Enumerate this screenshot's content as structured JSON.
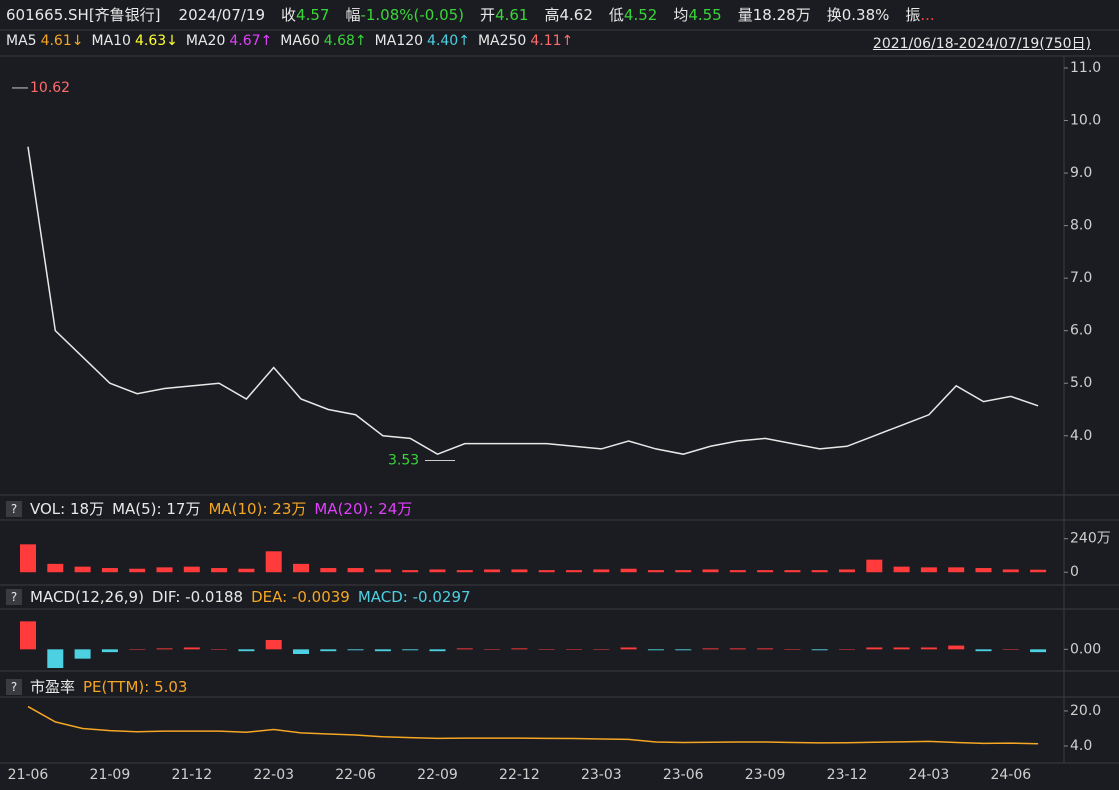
{
  "header": {
    "symbol": "601665.SH[齐鲁银行]",
    "date": "2024/07/19",
    "items": [
      {
        "label": "收",
        "value": "4.57",
        "color": "#3ad53a"
      },
      {
        "label": "幅",
        "value": "-1.08%(-0.05)",
        "color": "#3ad53a"
      },
      {
        "label": "开",
        "value": "4.61",
        "color": "#3ad53a"
      },
      {
        "label": "高",
        "value": "4.62",
        "color": "#e8e8e8"
      },
      {
        "label": "低",
        "value": "4.52",
        "color": "#3ad53a"
      },
      {
        "label": "均",
        "value": "4.55",
        "color": "#3ad53a"
      },
      {
        "label": "量",
        "value": "18.28万",
        "color": "#e8e8e8"
      },
      {
        "label": "换",
        "value": "0.38%",
        "color": "#e8e8e8"
      },
      {
        "label": "振",
        "value": "...",
        "color": "#ff4040"
      }
    ],
    "ma": [
      {
        "label": "MA5",
        "value": "4.61↓",
        "color": "#f5a623"
      },
      {
        "label": "MA10",
        "value": "4.63↓",
        "color": "#ffff33"
      },
      {
        "label": "MA20",
        "value": "4.67↑",
        "color": "#e040fb"
      },
      {
        "label": "MA60",
        "value": "4.68↑",
        "color": "#3ad53a"
      },
      {
        "label": "MA120",
        "value": "4.40↑",
        "color": "#4dd0e1"
      },
      {
        "label": "MA250",
        "value": "4.11↑",
        "color": "#ff6b6b"
      }
    ],
    "range": "2021/06/18-2024/07/19(750日)",
    "help": "?"
  },
  "chart_data": [
    {
      "type": "line",
      "color": "#e8e8e8",
      "categories": [
        "21-06",
        null,
        null,
        "21-09",
        null,
        null,
        "21-12",
        null,
        null,
        "22-03",
        null,
        null,
        "22-06",
        null,
        null,
        "22-09",
        null,
        null,
        "22-12",
        null,
        null,
        "23-03",
        null,
        null,
        "23-06",
        null,
        null,
        "23-09",
        null,
        null,
        "23-12",
        null,
        null,
        "24-03",
        null,
        null,
        "24-06",
        null
      ],
      "values": [
        9.5,
        6.0,
        5.5,
        5.0,
        4.8,
        4.9,
        4.95,
        5.0,
        4.7,
        5.3,
        4.7,
        4.5,
        4.4,
        4.0,
        3.95,
        3.65,
        3.85,
        3.85,
        3.85,
        3.85,
        3.8,
        3.75,
        3.9,
        3.75,
        3.65,
        3.8,
        3.9,
        3.95,
        3.85,
        3.75,
        3.8,
        4.0,
        4.2,
        4.4,
        4.95,
        4.65,
        4.75,
        4.57
      ],
      "ylim": [
        2.93,
        11.19
      ],
      "yticks": [
        {
          "value": 4,
          "label": "4.0"
        },
        {
          "value": 5,
          "label": "5.0"
        },
        {
          "value": 6,
          "label": "6.0"
        },
        {
          "value": 7,
          "label": "7.0"
        },
        {
          "value": 8,
          "label": "8.0"
        },
        {
          "value": 9,
          "label": "9.0"
        },
        {
          "value": 10,
          "label": "10.0"
        },
        {
          "value": 11,
          "label": "11.0"
        }
      ],
      "high": 10.62,
      "low": 3.53
    },
    {
      "type": "bar",
      "color": "#ff3b3b",
      "legend": [
        {
          "text": "VOL: 18万",
          "color": "#e8e8e8"
        },
        {
          "text": "MA(5): 17万",
          "color": "#e8e8e8"
        },
        {
          "text": "MA(10): 23万",
          "color": "#f5a623"
        },
        {
          "text": "MA(20): 24万",
          "color": "#e040fb"
        }
      ],
      "values": [
        200,
        60,
        40,
        30,
        25,
        35,
        40,
        30,
        25,
        150,
        60,
        30,
        30,
        20,
        15,
        20,
        15,
        20,
        20,
        15,
        15,
        20,
        25,
        15,
        15,
        20,
        15,
        15,
        15,
        15,
        20,
        90,
        40,
        35,
        35,
        30,
        20,
        18
      ],
      "ylim": [
        -70,
        360
      ],
      "yticks": [
        0,
        {
          "value": 240,
          "label": "240万"
        }
      ]
    },
    {
      "type": "bar",
      "pos_color": "#ff3b3b",
      "neg_color": "#4dd0e1",
      "legend": [
        {
          "text": "MACD(12,26,9)",
          "color": "#e8e8e8"
        },
        {
          "text": "DIF: -0.0188",
          "color": "#e8e8e8"
        },
        {
          "text": "DEA: -0.0039",
          "color": "#f5a623"
        },
        {
          "text": "MACD: -0.0297",
          "color": "#4dd0e1"
        }
      ],
      "values": [
        0.3,
        -0.2,
        -0.1,
        -0.03,
        0.0,
        0.01,
        0.02,
        0.0,
        -0.02,
        0.1,
        -0.05,
        -0.02,
        -0.01,
        -0.02,
        -0.01,
        -0.02,
        0.01,
        0.0,
        0.01,
        0,
        0,
        0,
        0.02,
        -0.01,
        -0.01,
        0.01,
        0.01,
        0.01,
        0,
        -0.01,
        0,
        0.02,
        0.02,
        0.02,
        0.04,
        -0.02,
        0.0,
        -0.03
      ],
      "ylim": [
        -0.2,
        0.4
      ],
      "yticks": [
        {
          "value": 0,
          "label": "0.00"
        }
      ]
    },
    {
      "type": "line",
      "color": "#f5a623",
      "legend": [
        {
          "text": "市盈率",
          "color": "#e8e8e8"
        },
        {
          "text": "PE(TTM): 5.03",
          "color": "#f5a623"
        }
      ],
      "values": [
        22,
        15,
        12,
        11,
        10.5,
        10.8,
        10.8,
        10.8,
        10.3,
        11.5,
        10,
        9.5,
        9.0,
        8.2,
        7.8,
        7.5,
        7.6,
        7.6,
        7.6,
        7.5,
        7.4,
        7.2,
        7.0,
        5.8,
        5.6,
        5.7,
        5.8,
        5.8,
        5.6,
        5.4,
        5.5,
        5.7,
        5.9,
        6.1,
        5.6,
        5.2,
        5.3,
        5.03
      ],
      "ylim": [
        -2.4,
        25
      ],
      "yticks": [
        {
          "value": 4,
          "label": "4.0"
        },
        {
          "value": 20,
          "label": "20.0"
        }
      ]
    }
  ]
}
